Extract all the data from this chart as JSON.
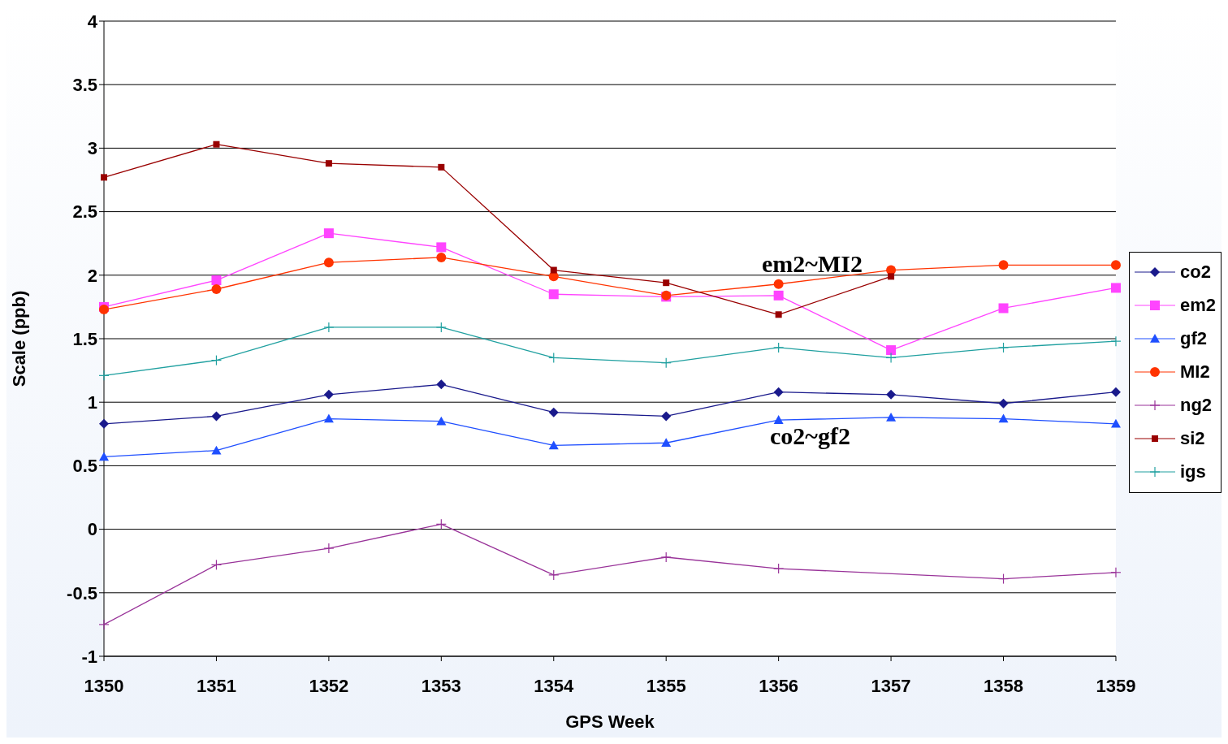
{
  "chart_data": {
    "type": "line",
    "xlabel": "GPS Week",
    "ylabel": "Scale (ppb)",
    "categories": [
      "1350",
      "1351",
      "1352",
      "1353",
      "1354",
      "1355",
      "1356",
      "1357",
      "1358",
      "1359"
    ],
    "ylim": [
      -1,
      4
    ],
    "yticks": [
      -1,
      -0.5,
      0,
      0.5,
      1,
      1.5,
      2,
      2.5,
      3,
      3.5,
      4
    ],
    "grid": "y",
    "legend": "right",
    "line_style": "solid",
    "series": [
      {
        "name": "co2",
        "color": "#1a1a8c",
        "marker": "diamond",
        "values": [
          0.83,
          0.89,
          1.06,
          1.14,
          0.92,
          0.89,
          1.08,
          1.06,
          0.99,
          1.08
        ]
      },
      {
        "name": "em2",
        "color": "#ff44ff",
        "marker": "square",
        "values": [
          1.75,
          1.96,
          2.33,
          2.22,
          1.85,
          1.83,
          1.84,
          1.41,
          1.74,
          1.9
        ]
      },
      {
        "name": "gf2",
        "color": "#1f4fff",
        "marker": "triangle",
        "values": [
          0.57,
          0.62,
          0.87,
          0.85,
          0.66,
          0.68,
          0.86,
          0.88,
          0.87,
          0.83
        ]
      },
      {
        "name": "MI2",
        "color": "#ff3300",
        "marker": "circle",
        "values": [
          1.73,
          1.89,
          2.1,
          2.14,
          1.99,
          1.84,
          1.93,
          2.04,
          2.08,
          2.08
        ]
      },
      {
        "name": "ng2",
        "color": "#993399",
        "marker": "cross",
        "values": [
          -0.75,
          -0.28,
          -0.15,
          0.04,
          -0.36,
          -0.22,
          -0.31,
          null,
          -0.39,
          -0.34
        ]
      },
      {
        "name": "si2",
        "color": "#990000",
        "marker": "square",
        "values": [
          2.77,
          3.03,
          2.88,
          2.85,
          2.04,
          1.94,
          1.69,
          1.99,
          null,
          null
        ]
      },
      {
        "name": "igs",
        "color": "#20a0a0",
        "marker": "cross",
        "values": [
          1.21,
          1.33,
          1.59,
          1.59,
          1.35,
          1.31,
          1.43,
          1.35,
          1.43,
          1.48
        ]
      }
    ],
    "annotations": [
      "em2~MI2",
      "co2~gf2"
    ]
  }
}
